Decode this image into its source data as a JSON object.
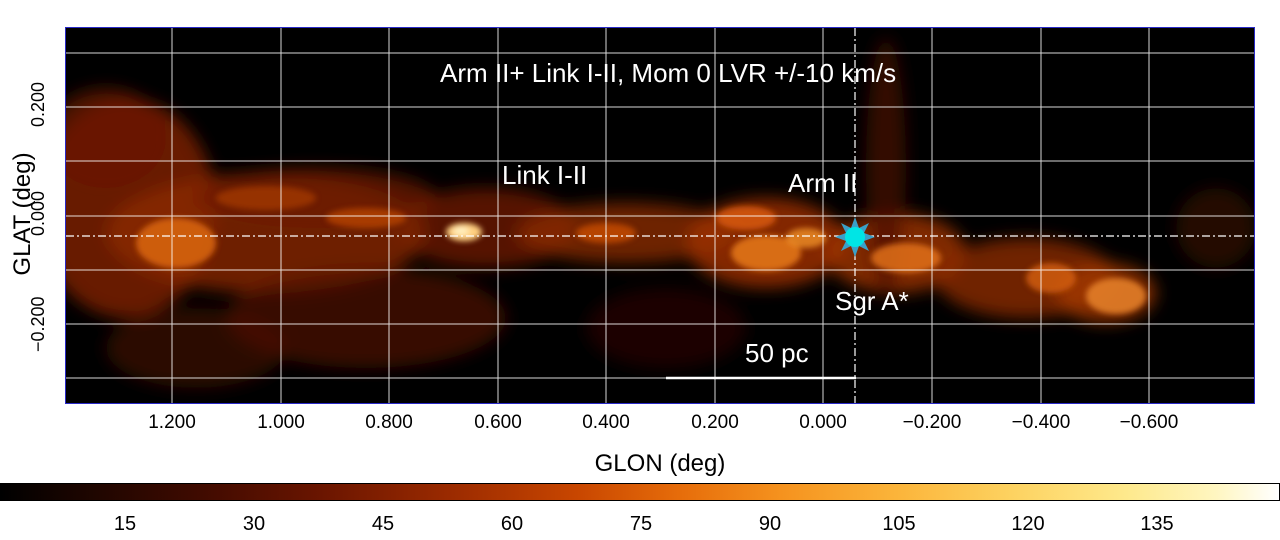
{
  "image": {
    "title": "Arm II+ Link I-II, Mom 0 LVR +/-10 km/s",
    "annotations": {
      "link": "Link I-II",
      "arm": "Arm II",
      "source": "Sgr A*",
      "scale_bar": "50 pc"
    },
    "marker_icon": "sun-star-icon",
    "marker_color": "#00e5e5"
  },
  "axes": {
    "y_label": "GLAT (deg)",
    "y_ticks": [
      "0.200",
      "0.000",
      "−0.200"
    ],
    "x_label": "GLON (deg)",
    "x_ticks": [
      "1.200",
      "1.000",
      "0.800",
      "0.600",
      "0.400",
      "0.200",
      "0.000",
      "−0.200",
      "−0.400",
      "−0.600"
    ]
  },
  "colorbar": {
    "ticks": [
      "15",
      "30",
      "45",
      "60",
      "75",
      "90",
      "105",
      "120",
      "135"
    ],
    "colormap": "heat (black-red-orange-yellow-white)"
  }
}
